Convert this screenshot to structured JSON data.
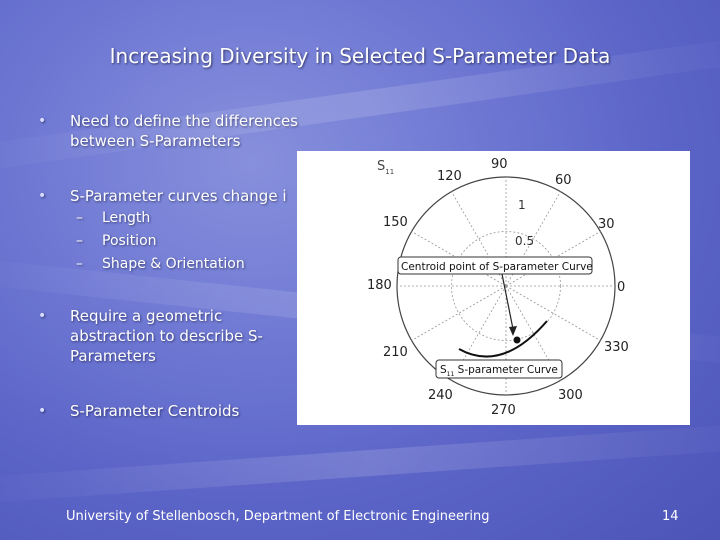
{
  "slide": {
    "title": "Increasing Diversity in Selected S-Parameter Data",
    "bullets": [
      {
        "text": "Need to define the differences between S-Parameters"
      },
      {
        "text": "S-Parameter curves change i"
      },
      {
        "text": "Require a geometric abstraction to describe S-Parameters"
      },
      {
        "text": "S-Parameter Centroids"
      }
    ],
    "sub_bullets": [
      "Length",
      "Position",
      "Shape & Orientation"
    ],
    "sub_bullet_marker": "–",
    "bullet_marker": "•",
    "footer": "University of Stellenbosch, Department of Electronic Engineering",
    "page_number": "14"
  },
  "figure": {
    "param_label": "S",
    "param_subscript": "11",
    "angle_labels": {
      "a90": "90",
      "a60": "60",
      "a30": "30",
      "a0": "0",
      "a330": "330",
      "a300": "300",
      "a270": "270",
      "a240": "240",
      "a210": "210",
      "a180": "180",
      "a150": "150",
      "a120": "120"
    },
    "radius_labels": {
      "r1": "1",
      "r05": "0.5"
    },
    "centroid_label": "Centroid point of S-parameter Curve",
    "curve_label_prefix": "S",
    "curve_label_subscript": "11",
    "curve_label_suffix": " S-parameter Curve"
  }
}
